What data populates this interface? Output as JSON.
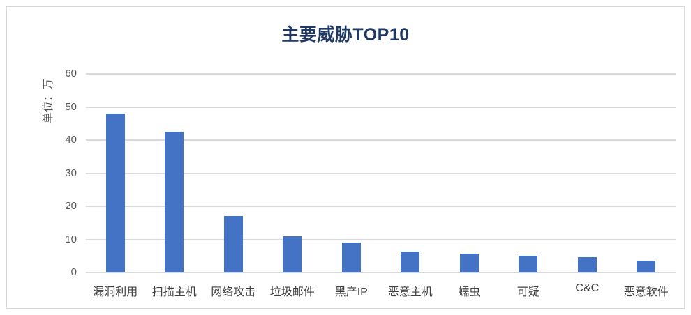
{
  "chart_data": {
    "type": "bar",
    "title": "主要威胁TOP10",
    "categories": [
      "漏洞利用",
      "扫描主机",
      "网络攻击",
      "垃圾邮件",
      "黑产IP",
      "恶意主机",
      "蠕虫",
      "可疑",
      "C&C",
      "恶意软件"
    ],
    "values": [
      48,
      42.5,
      17,
      11,
      9,
      6.3,
      5.7,
      5.1,
      4.7,
      3.5
    ],
    "series_name": "",
    "xlabel": "",
    "ylabel": "单位：万",
    "ylim": [
      0,
      60
    ],
    "yticks": [
      0,
      10,
      20,
      30,
      40,
      50,
      60
    ],
    "grid": true,
    "legend": false,
    "bar_color": "#4472C4",
    "title_color": "#1F3864",
    "axis_text_color": "#595959",
    "gridline_color": "#D9D9D9",
    "frame_border_color": "#D9D9D9"
  }
}
